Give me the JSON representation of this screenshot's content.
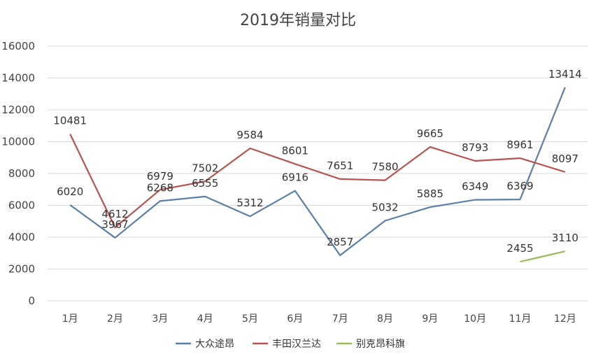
{
  "chart_data": {
    "type": "line",
    "title": "2019年销量对比",
    "categories": [
      "1月",
      "2月",
      "3月",
      "4月",
      "5月",
      "6月",
      "7月",
      "8月",
      "9月",
      "10月",
      "11月",
      "12月"
    ],
    "ylim": [
      0,
      16000
    ],
    "yticks": [
      0,
      2000,
      4000,
      6000,
      8000,
      10000,
      12000,
      14000,
      16000
    ],
    "grid": true,
    "legend_position": "bottom",
    "series": [
      {
        "name": "大众途昂",
        "color": "#5b7fa6",
        "values": [
          6020,
          3967,
          6268,
          6555,
          5312,
          6916,
          2857,
          5032,
          5885,
          6349,
          6369,
          13414
        ]
      },
      {
        "name": "丰田汉兰达",
        "color": "#b85450",
        "values": [
          10481,
          4612,
          6979,
          7502,
          9584,
          8601,
          7651,
          7580,
          9665,
          8793,
          8961,
          8097
        ]
      },
      {
        "name": "别克昂科旗",
        "color": "#9bbb59",
        "values": [
          null,
          null,
          null,
          null,
          null,
          null,
          null,
          null,
          null,
          null,
          2455,
          3110
        ]
      }
    ]
  }
}
